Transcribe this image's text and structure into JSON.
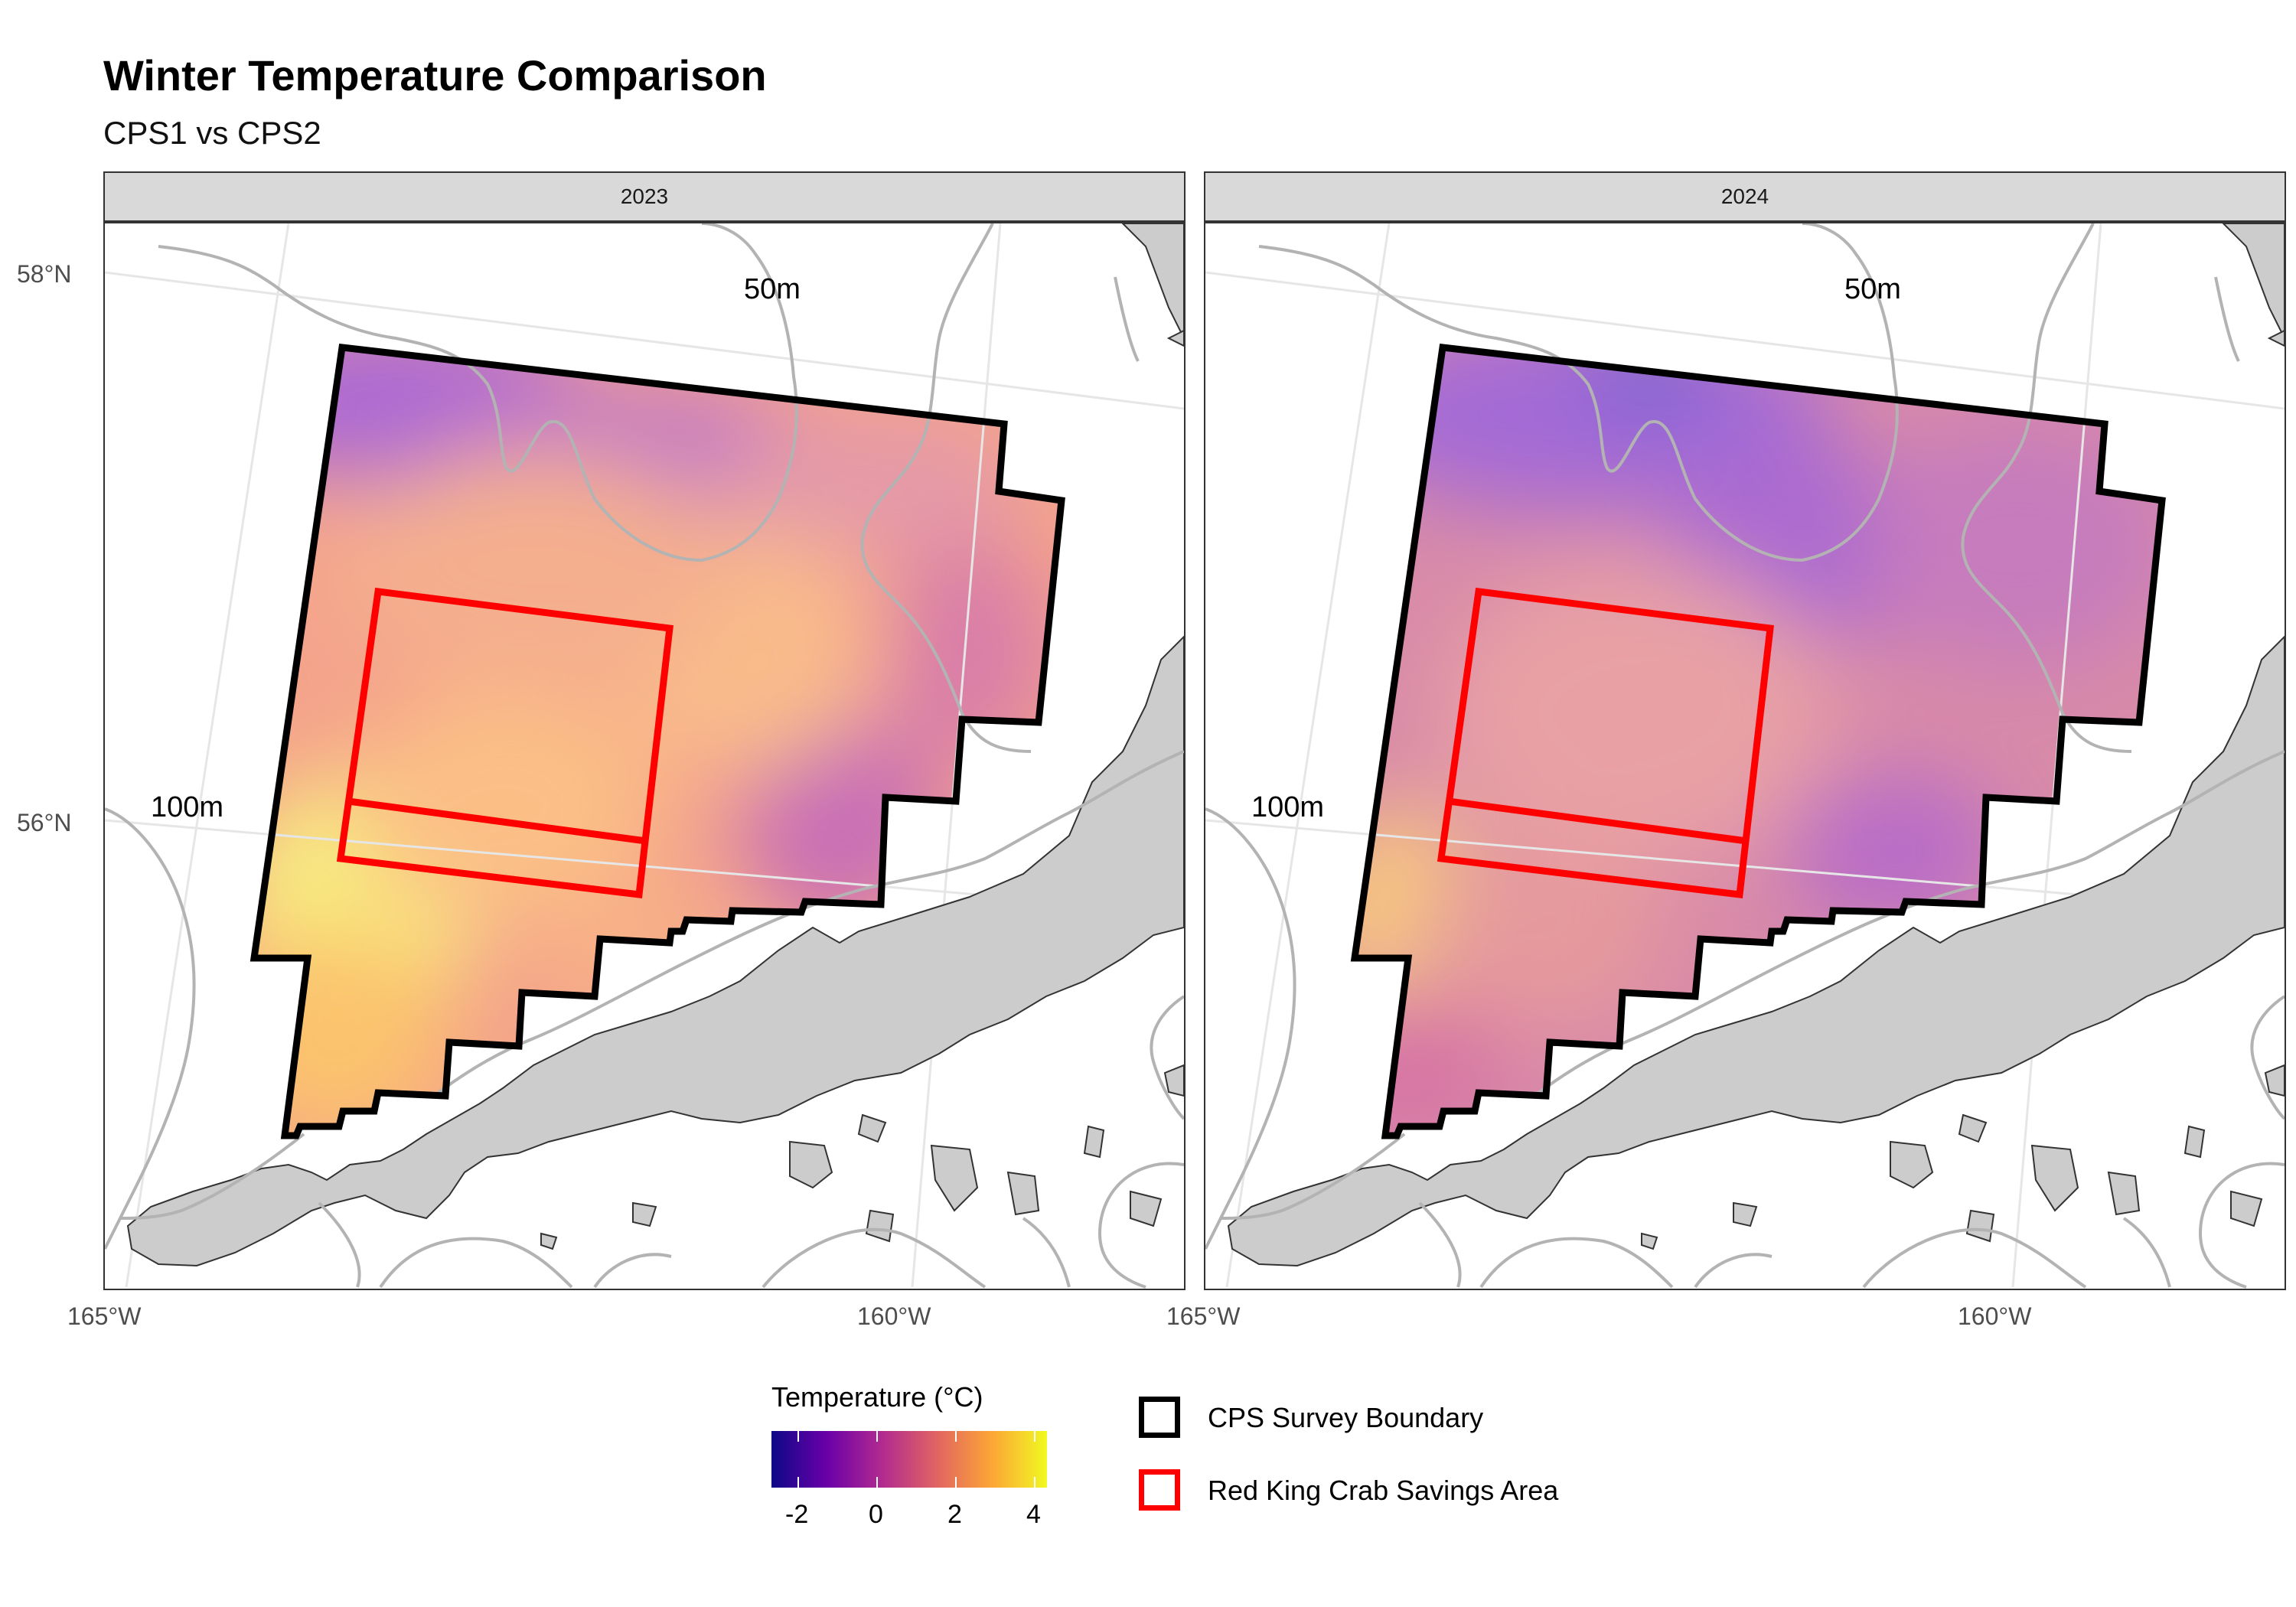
{
  "title": "Winter Temperature Comparison",
  "subtitle": "CPS1 vs CPS2",
  "panels": [
    {
      "label": "2023"
    },
    {
      "label": "2024"
    }
  ],
  "map": {
    "lat_labels": [
      "58°N",
      "56°N"
    ],
    "lon_labels": [
      "165°W",
      "160°W"
    ],
    "depth_labels": [
      "50m",
      "100m"
    ]
  },
  "legend": {
    "colorbar_title": "Temperature (°C)",
    "colorbar_ticks": [
      "-2",
      "0",
      "2",
      "4"
    ],
    "colorbar_range": [
      -2.5,
      4.5
    ],
    "colorbar_colors": [
      "#0d0887",
      "#6a00a8",
      "#b12a90",
      "#e16462",
      "#fca636",
      "#f0f921"
    ],
    "items": [
      {
        "label": "CPS Survey Boundary",
        "color": "#000000"
      },
      {
        "label": "Red King Crab Savings Area",
        "color": "#ff0000"
      }
    ]
  }
}
